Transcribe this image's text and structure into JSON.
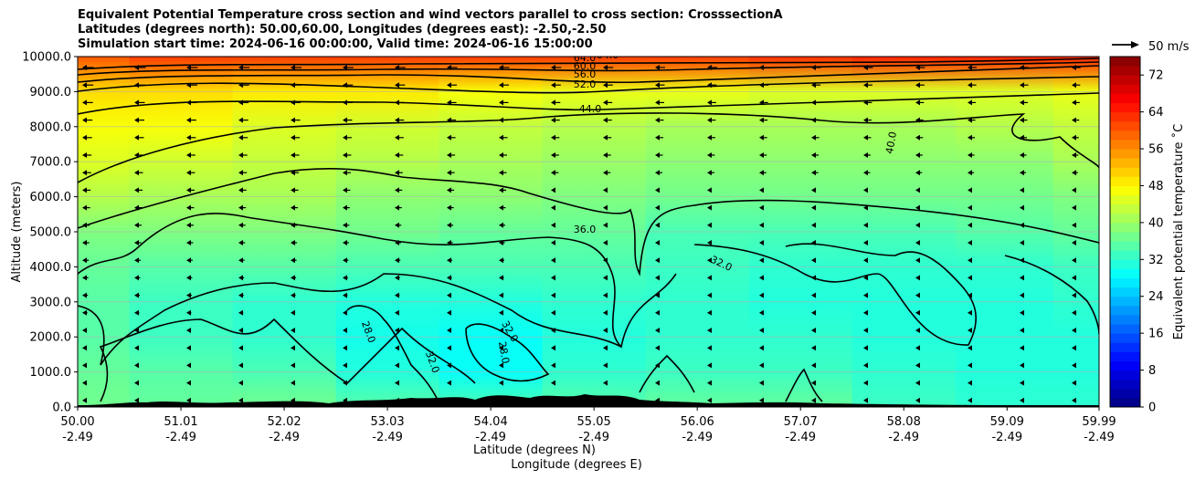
{
  "title_lines": [
    "Equivalent Potential Temperature cross section and wind vectors parallel to cross section: CrosssectionA",
    "Latitudes (degrees north): 50.00,60.00, Longitudes (degrees east): -2.50,-2.50",
    "Simulation start time: 2024-06-16 00:00:00, Valid time: 2024-06-16 15:00:00"
  ],
  "quiver_key": "50 m/s",
  "colorbar_label": "Equivalent potential temperature ˚C",
  "chart_data": {
    "type": "heatmap",
    "title": "Equivalent Potential Temperature cross section and wind vectors parallel to cross section: CrosssectionA",
    "ylabel": "Altitude (meters)",
    "xlabel_1": "Latitude (degrees N)",
    "xlabel_2": "Longitude (degrees E)",
    "ylim": [
      0,
      10000
    ],
    "xlim": [
      50.0,
      59.99
    ],
    "grid": "horizontal",
    "y_ticks": [
      "0.0",
      "1000.0",
      "2000.0",
      "3000.0",
      "4000.0",
      "5000.0",
      "6000.0",
      "7000.0",
      "8000.0",
      "9000.0",
      "10000.0"
    ],
    "x_ticks": [
      {
        "lat": "50.00",
        "lon": "-2.49"
      },
      {
        "lat": "51.01",
        "lon": "-2.49"
      },
      {
        "lat": "52.02",
        "lon": "-2.49"
      },
      {
        "lat": "53.03",
        "lon": "-2.49"
      },
      {
        "lat": "54.04",
        "lon": "-2.49"
      },
      {
        "lat": "55.05",
        "lon": "-2.49"
      },
      {
        "lat": "56.06",
        "lon": "-2.49"
      },
      {
        "lat": "57.07",
        "lon": "-2.49"
      },
      {
        "lat": "58.08",
        "lon": "-2.49"
      },
      {
        "lat": "59.09",
        "lon": "-2.49"
      },
      {
        "lat": "59.99",
        "lon": "-2.49"
      }
    ],
    "colorbar": {
      "min": 0,
      "max": 76,
      "ticks": [
        "0",
        "8",
        "16",
        "24",
        "32",
        "40",
        "48",
        "56",
        "64",
        "72"
      ]
    },
    "contour_labels": [
      "28.0",
      "32.0",
      "36.0",
      "40.0",
      "44.0",
      "52.0",
      "56.0",
      "60.0",
      "64.0"
    ],
    "profile_altitudes": [
      0,
      1000,
      2000,
      3000,
      4000,
      5000,
      6000,
      7000,
      8000,
      9000,
      10000
    ],
    "profiles": [
      {
        "lat": 50.0,
        "theta_e": [
          37,
          36,
          35,
          35,
          36,
          38,
          42,
          45,
          47,
          50,
          60
        ]
      },
      {
        "lat": 51.01,
        "theta_e": [
          36,
          35,
          33,
          33,
          35,
          38,
          41,
          44,
          47,
          50,
          62
        ]
      },
      {
        "lat": 52.02,
        "theta_e": [
          37,
          34,
          32,
          32,
          35,
          38,
          41,
          43,
          45,
          49,
          62
        ]
      },
      {
        "lat": 53.03,
        "theta_e": [
          35,
          31,
          30,
          31,
          34,
          37,
          39,
          42,
          44,
          49,
          62
        ]
      },
      {
        "lat": 54.04,
        "theta_e": [
          34,
          29,
          29,
          31,
          34,
          36,
          39,
          41,
          43,
          47,
          62
        ]
      },
      {
        "lat": 55.05,
        "theta_e": [
          35,
          32,
          31,
          32,
          34,
          36,
          38,
          40,
          42,
          46,
          62
        ]
      },
      {
        "lat": 56.06,
        "theta_e": [
          36,
          33,
          32,
          32,
          33,
          34,
          37,
          39,
          41,
          46,
          62
        ]
      },
      {
        "lat": 57.07,
        "theta_e": [
          36,
          33,
          32,
          31,
          32,
          34,
          37,
          39,
          41,
          45,
          63
        ]
      },
      {
        "lat": 58.08,
        "theta_e": [
          33,
          32,
          31,
          31,
          32,
          34,
          37,
          39,
          41,
          45,
          64
        ]
      },
      {
        "lat": 59.09,
        "theta_e": [
          32,
          31,
          31,
          31,
          32,
          35,
          37,
          39,
          42,
          45,
          64
        ]
      },
      {
        "lat": 59.99,
        "theta_e": [
          32,
          31,
          31,
          32,
          33,
          36,
          38,
          41,
          43,
          46,
          64
        ]
      }
    ]
  }
}
